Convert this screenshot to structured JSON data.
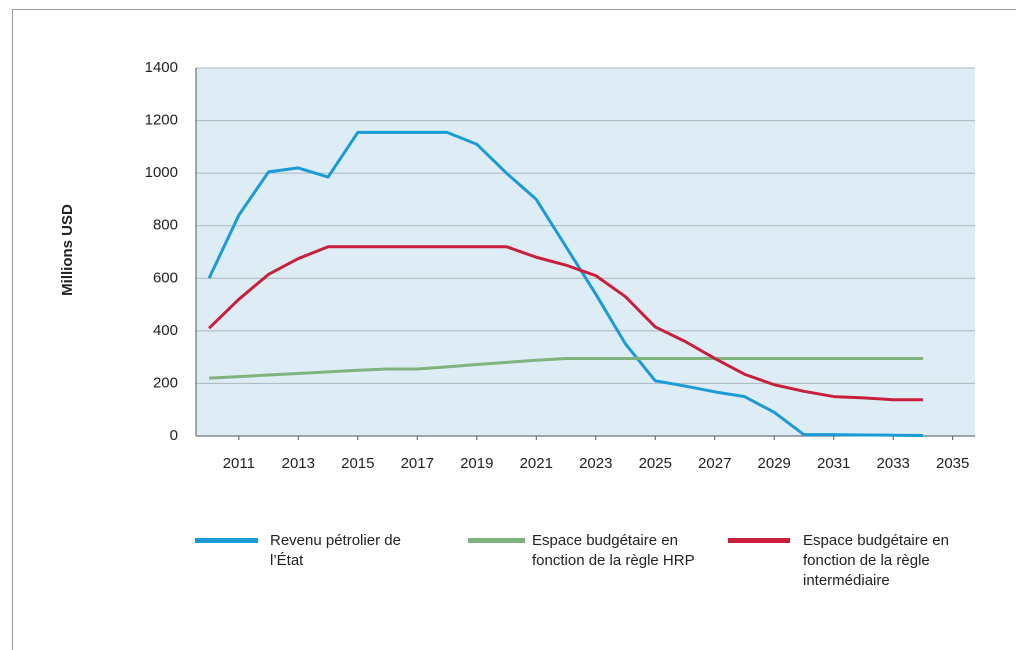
{
  "chart_data": {
    "type": "line",
    "y_label": "Millions USD",
    "x": [
      2010,
      2011,
      2012,
      2013,
      2014,
      2015,
      2016,
      2017,
      2018,
      2019,
      2020,
      2021,
      2022,
      2023,
      2024,
      2025,
      2026,
      2027,
      2028,
      2029,
      2030,
      2031,
      2032,
      2033,
      2034
    ],
    "xlim": [
      2009.56,
      2035.75
    ],
    "xticks": [
      2011,
      2013,
      2015,
      2017,
      2019,
      2021,
      2023,
      2025,
      2027,
      2029,
      2031,
      2033,
      2035
    ],
    "ylim": [
      0,
      1400
    ],
    "yticks": [
      0,
      200,
      400,
      600,
      800,
      1000,
      1200,
      1400
    ],
    "grid": true,
    "legend": "bottom",
    "series": [
      {
        "name": "Revenu pétrolier de l’État",
        "color": "#1a9bd7",
        "values": [
          600,
          840,
          1005,
          1020,
          985,
          1155,
          1155,
          1155,
          1155,
          1110,
          1000,
          900,
          720,
          540,
          350,
          210,
          190,
          168,
          150,
          90,
          5,
          5,
          4,
          3,
          2
        ]
      },
      {
        "name": "Espace budgétaire en fonction de la règle HRP",
        "color": "#7fb37d",
        "values": [
          220,
          226,
          232,
          238,
          244,
          250,
          255,
          255,
          263,
          272,
          280,
          288,
          295,
          295,
          295,
          295,
          295,
          295,
          295,
          295,
          295,
          295,
          295,
          295,
          295
        ]
      },
      {
        "name": "Espace budgétaire en fonction de la règle intermédiaire",
        "color": "#c8203b",
        "values": [
          410,
          520,
          615,
          675,
          720,
          720,
          720,
          720,
          720,
          720,
          720,
          680,
          650,
          610,
          530,
          415,
          360,
          295,
          235,
          195,
          170,
          150,
          145,
          138,
          138
        ]
      }
    ]
  }
}
